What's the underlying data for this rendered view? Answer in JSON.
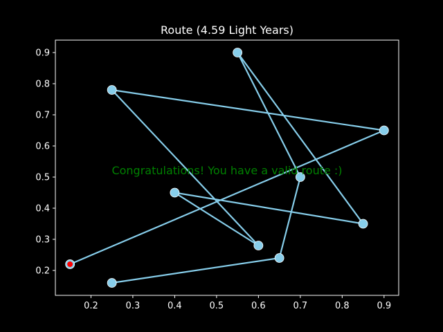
{
  "chart_data": {
    "type": "line",
    "title": "Route (4.59 Light Years)",
    "xlabel": "",
    "ylabel": "",
    "xlim": [
      0.115,
      0.935
    ],
    "ylim": [
      0.12,
      0.94
    ],
    "xticks": [
      0.2,
      0.3,
      0.4,
      0.5,
      0.6,
      0.7,
      0.8,
      0.9
    ],
    "yticks": [
      0.2,
      0.3,
      0.4,
      0.5,
      0.6,
      0.7,
      0.8,
      0.9
    ],
    "grid": false,
    "series": [
      {
        "x": [
          0.15,
          0.9,
          0.25,
          0.6,
          0.4,
          0.85,
          0.55,
          0.7,
          0.65,
          0.25
        ],
        "y": [
          0.22,
          0.65,
          0.78,
          0.28,
          0.45,
          0.35,
          0.9,
          0.5,
          0.24,
          0.16
        ]
      }
    ],
    "start_point": {
      "x": 0.15,
      "y": 0.22
    },
    "annotation": {
      "text": "Congratulations! You have a valid route :)",
      "x": 0.525,
      "y": 0.52
    },
    "colors": {
      "background": "#000000",
      "line": "#87ceeb",
      "marker": "#87ceeb",
      "start_marker": "#ff0000",
      "annotation": "#008000",
      "axis": "#ffffff"
    }
  }
}
